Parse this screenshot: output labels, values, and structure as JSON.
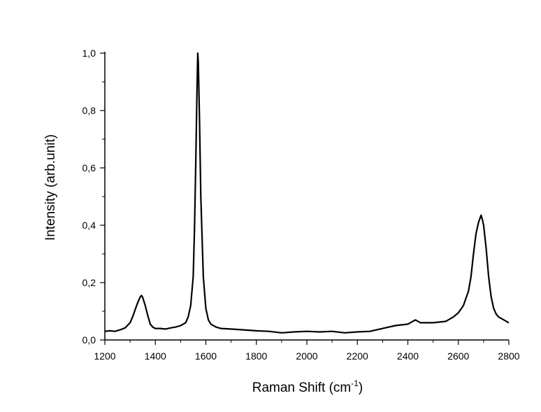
{
  "chart_data": {
    "type": "line",
    "title": "",
    "xlabel": "Raman Shift (cm",
    "xlabel_sup": "-1",
    "xlabel_suffix": ")",
    "ylabel": "Intensity (arb.unit)",
    "xlim": [
      1200,
      2800
    ],
    "ylim": [
      0.0,
      1.0
    ],
    "grid": false,
    "x_ticks": [
      "1200",
      "1400",
      "1600",
      "1800",
      "2000",
      "2200",
      "2400",
      "2600",
      "2800"
    ],
    "y_ticks": [
      "0,0",
      "0,2",
      "0,4",
      "0,6",
      "0,8",
      "1,0"
    ],
    "series": [
      {
        "color": "#000000",
        "x": [
          1200,
          1220,
          1240,
          1260,
          1280,
          1300,
          1310,
          1320,
          1330,
          1340,
          1345,
          1350,
          1360,
          1370,
          1380,
          1390,
          1400,
          1420,
          1440,
          1460,
          1480,
          1500,
          1510,
          1520,
          1530,
          1540,
          1550,
          1555,
          1560,
          1565,
          1568,
          1570,
          1575,
          1580,
          1590,
          1600,
          1610,
          1620,
          1640,
          1660,
          1700,
          1750,
          1800,
          1850,
          1900,
          1950,
          2000,
          2050,
          2100,
          2150,
          2200,
          2250,
          2300,
          2350,
          2400,
          2430,
          2450,
          2500,
          2550,
          2580,
          2600,
          2620,
          2640,
          2650,
          2660,
          2670,
          2680,
          2690,
          2695,
          2700,
          2710,
          2720,
          2730,
          2740,
          2750,
          2760,
          2770,
          2780,
          2790,
          2800
        ],
        "y": [
          0.03,
          0.032,
          0.03,
          0.035,
          0.042,
          0.06,
          0.08,
          0.105,
          0.13,
          0.15,
          0.155,
          0.148,
          0.12,
          0.085,
          0.055,
          0.045,
          0.04,
          0.04,
          0.038,
          0.042,
          0.045,
          0.05,
          0.055,
          0.06,
          0.08,
          0.12,
          0.22,
          0.38,
          0.62,
          0.88,
          1.0,
          0.97,
          0.76,
          0.5,
          0.22,
          0.11,
          0.07,
          0.055,
          0.045,
          0.04,
          0.038,
          0.035,
          0.032,
          0.03,
          0.025,
          0.028,
          0.03,
          0.028,
          0.03,
          0.025,
          0.028,
          0.03,
          0.04,
          0.05,
          0.055,
          0.07,
          0.06,
          0.06,
          0.065,
          0.08,
          0.095,
          0.12,
          0.17,
          0.22,
          0.3,
          0.37,
          0.41,
          0.435,
          0.42,
          0.4,
          0.32,
          0.22,
          0.15,
          0.11,
          0.09,
          0.08,
          0.075,
          0.07,
          0.065,
          0.06
        ]
      }
    ]
  }
}
